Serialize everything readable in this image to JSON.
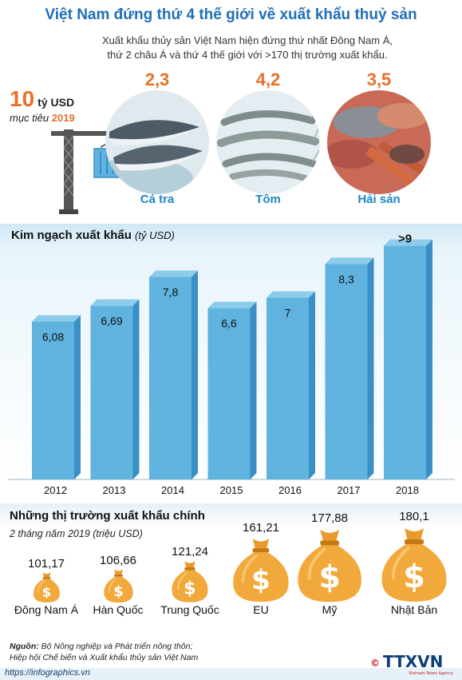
{
  "header": {
    "title": "Việt Nam đứng thứ 4 thế giới về xuất khẩu thuỷ sản",
    "subtitle_line1": "Xuất khẩu thủy sản Việt Nam hiện đứng thứ nhất Đông Nam Á,",
    "subtitle_line2": "thứ 2 châu Á và thứ 4 thế giới với >170 thị trường xuất khẩu."
  },
  "target": {
    "value": "10",
    "unit": "tỷ USD",
    "label": "mục tiêu",
    "year": "2019"
  },
  "products": [
    {
      "value": "2,3",
      "name": "Cá tra"
    },
    {
      "value": "4,2",
      "name": "Tôm"
    },
    {
      "value": "3,5",
      "name": "Hải sản"
    }
  ],
  "colors": {
    "title": "#1f6fb8",
    "accent_orange": "#e8702a",
    "bar_front": "#5fb3de",
    "bar_side": "#3a8fc4",
    "product_name": "#1f86c8",
    "money_bag": "#f2a93b"
  },
  "chart_data": [
    {
      "type": "bar",
      "title": "Kim ngạch xuất khẩu",
      "unit": "(tỷ USD)",
      "categories": [
        "2012",
        "2013",
        "2014",
        "2015",
        "2016",
        "2017",
        "2018"
      ],
      "values": [
        6.08,
        6.69,
        7.8,
        6.6,
        7,
        8.3,
        9
      ],
      "value_labels": [
        "6,08",
        "6,69",
        "7,8",
        "6,6",
        "7",
        "8,3",
        ">9"
      ],
      "ylim": [
        0,
        9.3
      ],
      "grid": false
    },
    {
      "type": "bar",
      "title": "Những thị trường xuất khẩu chính",
      "subtitle": "2 tháng năm 2019 (triệu USD)",
      "categories": [
        "Đông Nam Á",
        "Hàn Quốc",
        "Trung Quốc",
        "EU",
        "Mỹ",
        "Nhật Bản"
      ],
      "values": [
        101.17,
        106.66,
        121.24,
        161.21,
        177.88,
        180.1
      ],
      "value_labels": [
        "101,17",
        "106,66",
        "121,24",
        "161,21",
        "177,88",
        "180,1"
      ]
    }
  ],
  "source": {
    "label": "Nguồn:",
    "line1": "Bộ Nông nghiệp và Phát triển nông thôn;",
    "line2": "Hiệp hội Chế biến và Xuất khẩu thủy sản Việt Nam"
  },
  "footer": {
    "site": "https://infographics.vn",
    "logo": "TTXVN",
    "logo_small": "Vietnam News Agency"
  }
}
